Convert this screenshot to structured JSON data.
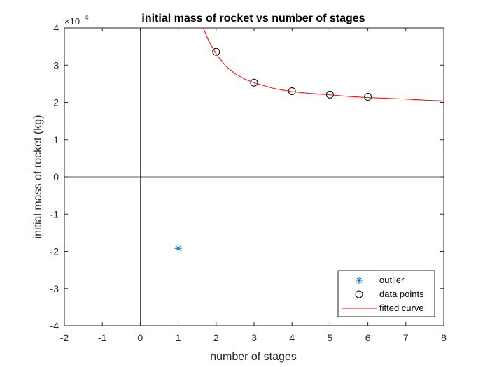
{
  "chart_data": {
    "type": "scatter",
    "title": "initial mass of rocket vs number of stages",
    "xlabel": "number of stages",
    "ylabel": "initial mass of rocket (kg)",
    "xlim": [
      -2,
      8
    ],
    "ylim": [
      -40000,
      40000
    ],
    "xticks": [
      -2,
      -1,
      0,
      1,
      2,
      3,
      4,
      5,
      6,
      7,
      8
    ],
    "yticks": [
      -40000,
      -30000,
      -20000,
      -10000,
      0,
      10000,
      20000,
      30000,
      40000
    ],
    "ytick_labels": [
      "-4",
      "-3",
      "-2",
      "-1",
      "0",
      "1",
      "2",
      "3",
      "4"
    ],
    "y_exponent_label": "×10",
    "y_exponent": "4",
    "zero_lines": true,
    "grid": false,
    "legend_position": "bottom-right",
    "series": [
      {
        "name": "outlier",
        "marker": "asterisk",
        "color": "#0072BD",
        "x": [
          1
        ],
        "y": [
          -19200
        ]
      },
      {
        "name": "data points",
        "marker": "circle",
        "color": "#000000",
        "x": [
          2,
          3,
          4,
          5,
          6
        ],
        "y": [
          33600,
          25300,
          23000,
          22100,
          21500
        ]
      },
      {
        "name": "fitted curve",
        "line": "solid",
        "color": "#FF0000",
        "x": [
          1.66,
          1.8,
          2,
          2.25,
          2.5,
          2.75,
          3,
          3.5,
          4,
          4.5,
          5,
          5.5,
          6,
          6.5,
          7,
          7.5,
          8
        ],
        "y": [
          40000,
          36600,
          33000,
          29800,
          27700,
          26300,
          25300,
          23800,
          22900,
          22400,
          22000,
          21600,
          21300,
          21100,
          20900,
          20600,
          20400
        ]
      }
    ]
  }
}
